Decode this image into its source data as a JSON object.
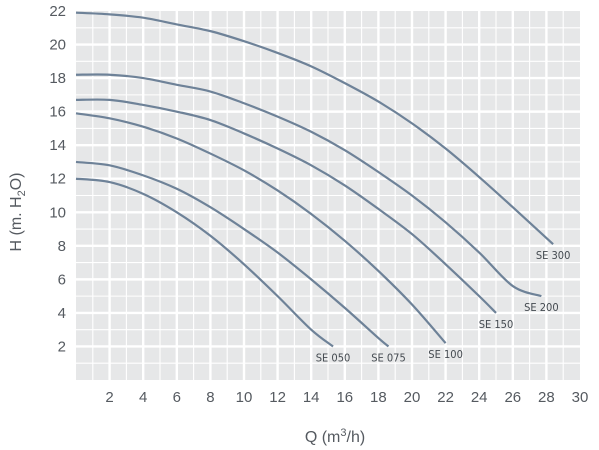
{
  "chart_data": {
    "type": "line",
    "title": "",
    "xlabel": {
      "main": "Q (m",
      "sup": "3",
      "tail": "/h)"
    },
    "ylabel": {
      "main": "H (m. H",
      "sub": "2",
      "tail": "O)"
    },
    "xlim": [
      0,
      30
    ],
    "ylim": [
      0,
      22
    ],
    "xticks": [
      "2",
      "4",
      "6",
      "8",
      "10",
      "12",
      "14",
      "16",
      "18",
      "20",
      "22",
      "24",
      "26",
      "28",
      "30"
    ],
    "yticks": [
      "2",
      "4",
      "6",
      "8",
      "10",
      "12",
      "14",
      "16",
      "18",
      "20",
      "22"
    ],
    "grid": true,
    "background": "#e6e7e8",
    "grid_color": "#ffffff",
    "line_color": "#6e8298",
    "series": [
      {
        "name": "SE 050",
        "x": [
          0,
          2,
          4,
          6,
          8,
          10,
          12,
          14,
          15.3
        ],
        "y": [
          12,
          11.8,
          11.1,
          10,
          8.6,
          6.9,
          5,
          3,
          2
        ]
      },
      {
        "name": "SE 075",
        "x": [
          0,
          2,
          4,
          6,
          8,
          10,
          12,
          14,
          16,
          18,
          18.6
        ],
        "y": [
          13,
          12.8,
          12.2,
          11.4,
          10.3,
          9,
          7.6,
          6,
          4.3,
          2.5,
          2
        ]
      },
      {
        "name": "SE 100",
        "x": [
          0,
          2,
          4,
          6,
          8,
          10,
          12,
          14,
          16,
          18,
          20,
          22
        ],
        "y": [
          15.9,
          15.6,
          15.1,
          14.4,
          13.5,
          12.5,
          11.3,
          9.9,
          8.3,
          6.5,
          4.5,
          2.2
        ]
      },
      {
        "name": "SE 150",
        "x": [
          0,
          2,
          4,
          6,
          8,
          10,
          12,
          14,
          16,
          18,
          20,
          22,
          24,
          25
        ],
        "y": [
          16.7,
          16.7,
          16.4,
          16,
          15.5,
          14.7,
          13.8,
          12.8,
          11.6,
          10.2,
          8.7,
          6.9,
          5,
          4
        ]
      },
      {
        "name": "SE 200",
        "x": [
          0,
          2,
          4,
          6,
          8,
          10,
          12,
          14,
          16,
          18,
          20,
          22,
          24,
          26,
          27.7
        ],
        "y": [
          18.2,
          18.2,
          18,
          17.6,
          17.2,
          16.5,
          15.7,
          14.8,
          13.7,
          12.4,
          11,
          9.4,
          7.6,
          5.6,
          5
        ]
      },
      {
        "name": "SE 300",
        "x": [
          0,
          2,
          4,
          6,
          8,
          10,
          12,
          14,
          16,
          18,
          20,
          22,
          24,
          26,
          28.4
        ],
        "y": [
          21.9,
          21.8,
          21.6,
          21.2,
          20.8,
          20.2,
          19.5,
          18.7,
          17.7,
          16.6,
          15.3,
          13.8,
          12.1,
          10.3,
          8.1
        ]
      }
    ]
  }
}
